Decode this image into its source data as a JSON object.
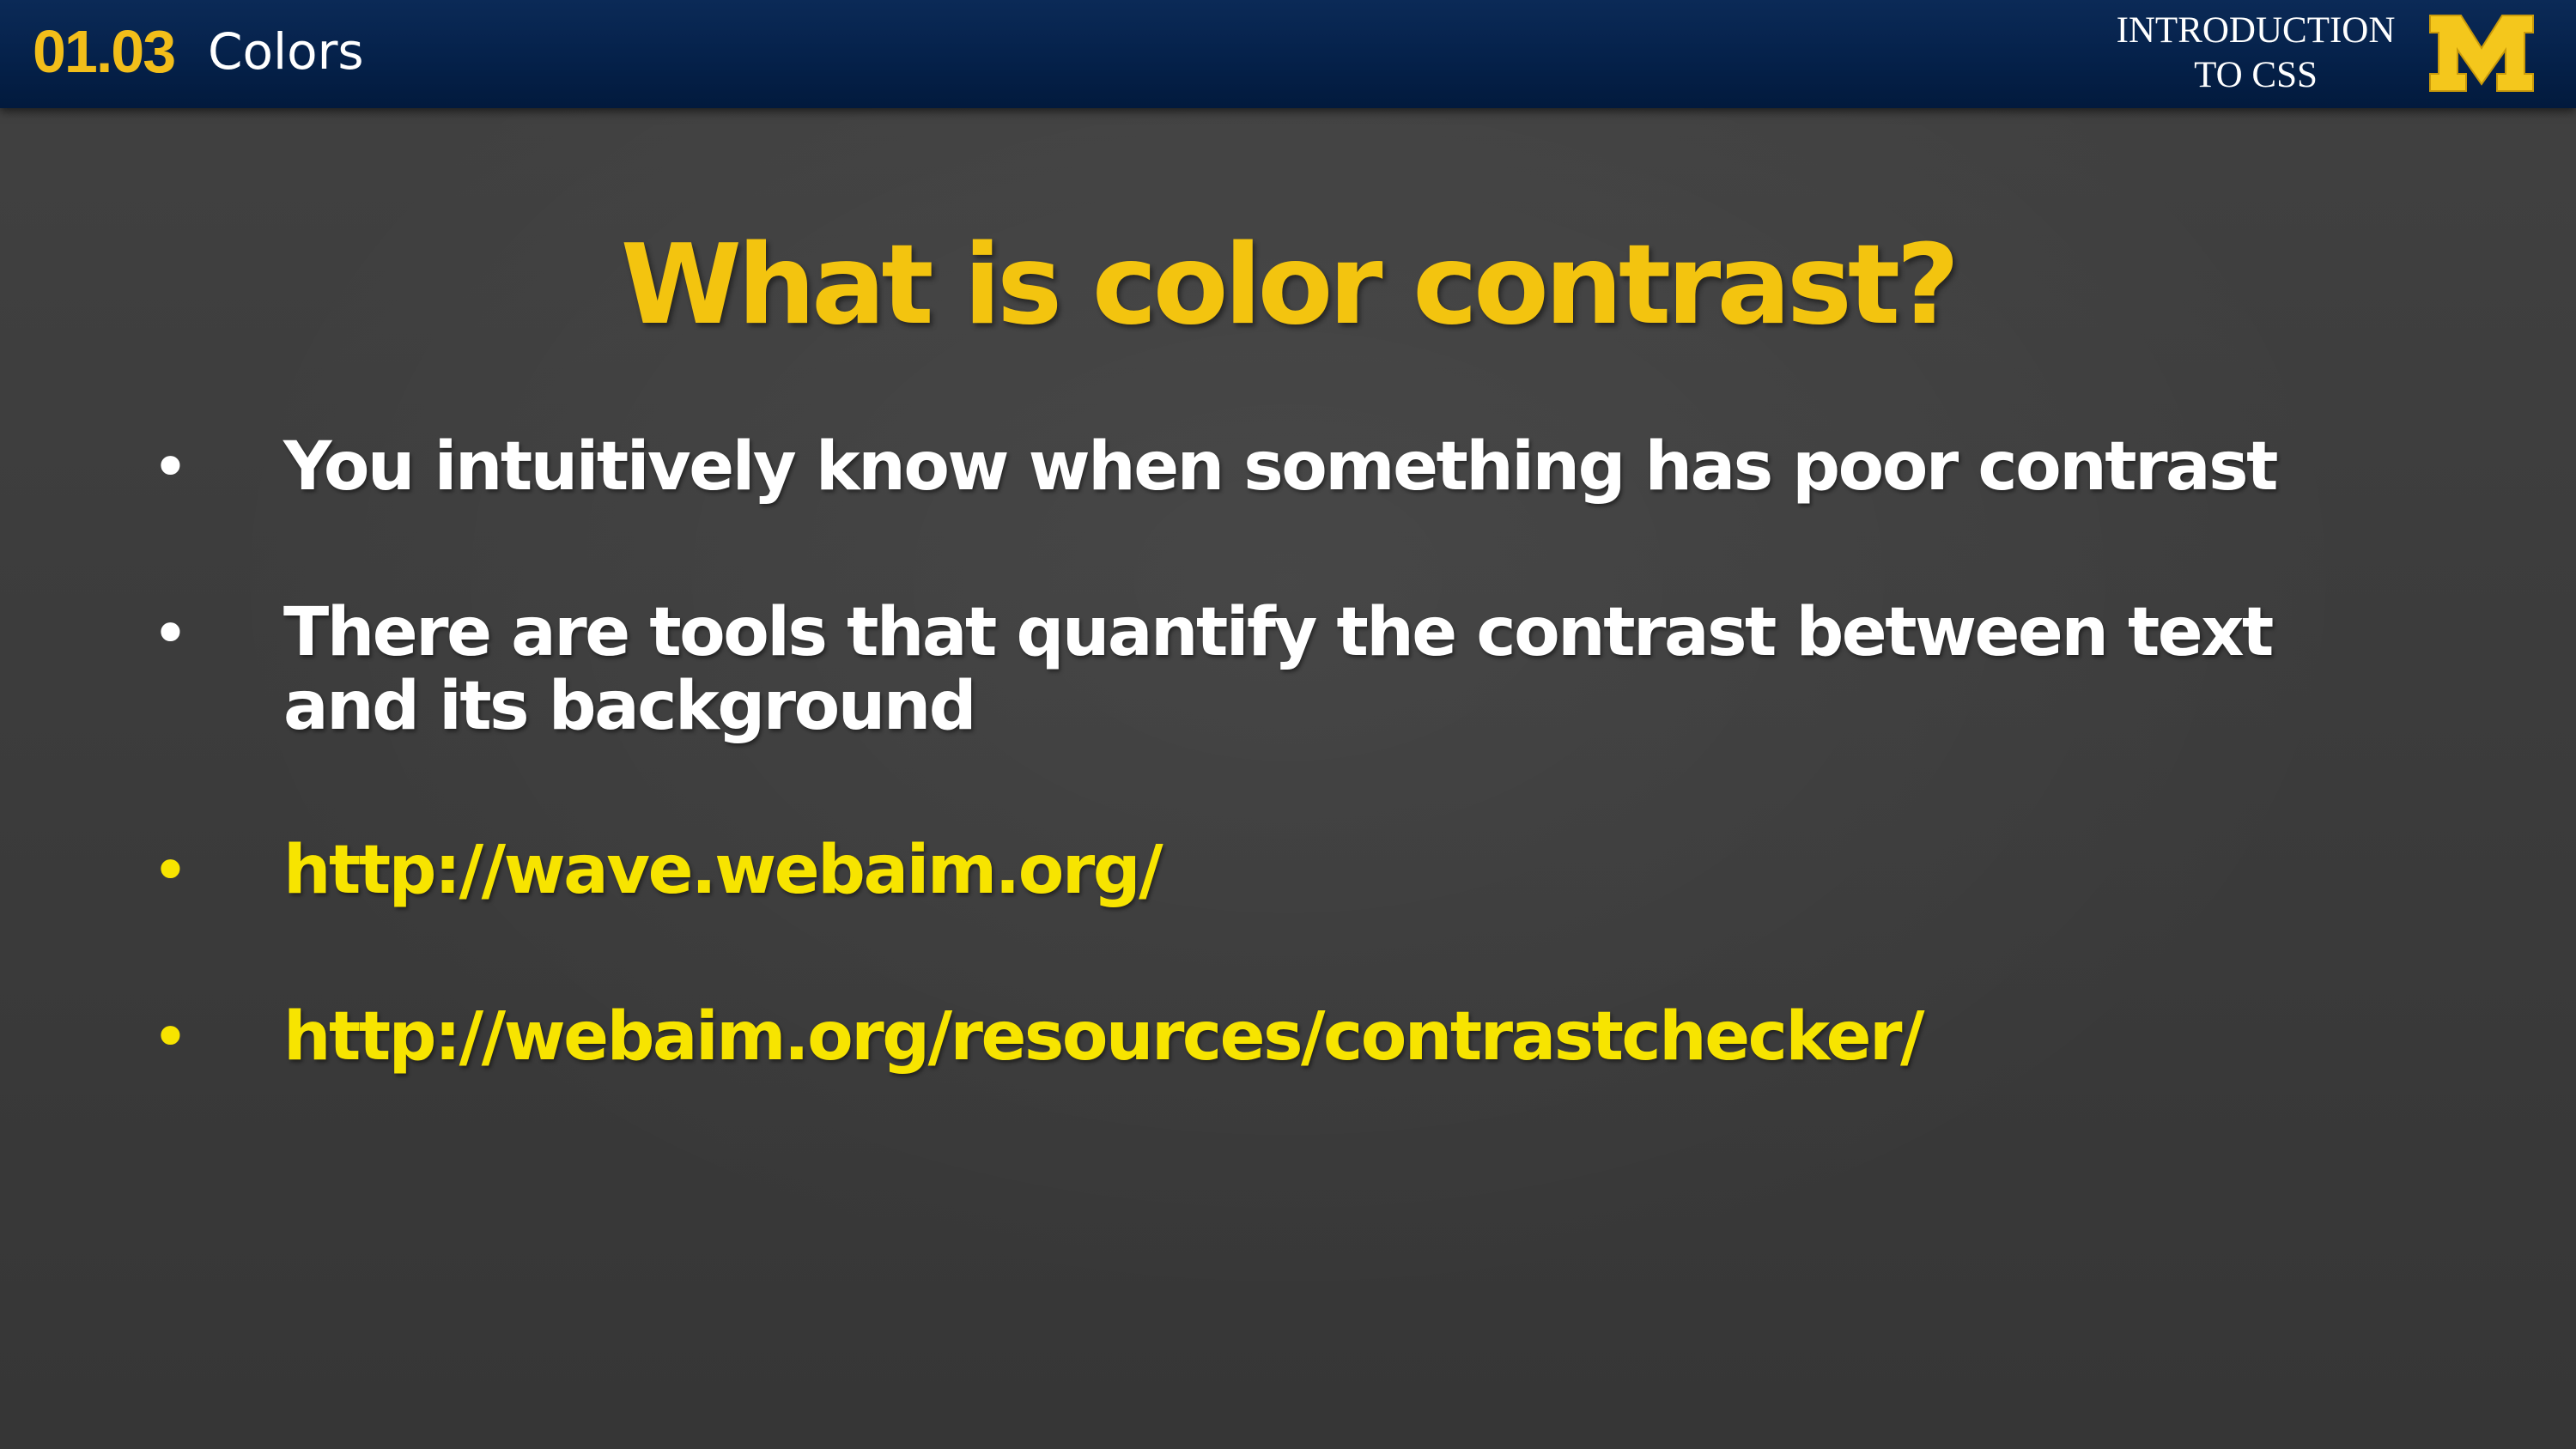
{
  "header": {
    "lesson_number": "01.03",
    "lesson_title": "Colors",
    "course_title_line1": "INTRODUCTION",
    "course_title_line2": "TO CSS",
    "logo_icon": "block-m-logo"
  },
  "slide": {
    "heading": "What is color contrast?",
    "bullets": [
      {
        "marker": "•",
        "text": "You intuitively know when something has poor contrast",
        "color": "#ffffff"
      },
      {
        "marker": "•",
        "text": "There are tools that quantify the contrast between text and its background",
        "color": "#ffffff"
      },
      {
        "marker": "•",
        "text": "http://wave.webaim.org/",
        "color": "#f7e400"
      },
      {
        "marker": "•",
        "text": "http://webaim.org/resources/contrastchecker/",
        "color": "#f7e400"
      }
    ]
  },
  "colors": {
    "header_background": "#05214a",
    "accent_gold": "#f2be1a",
    "heading_gold": "#f3c40f",
    "link_yellow": "#f7e400",
    "slide_background": "#3d3d3d"
  }
}
